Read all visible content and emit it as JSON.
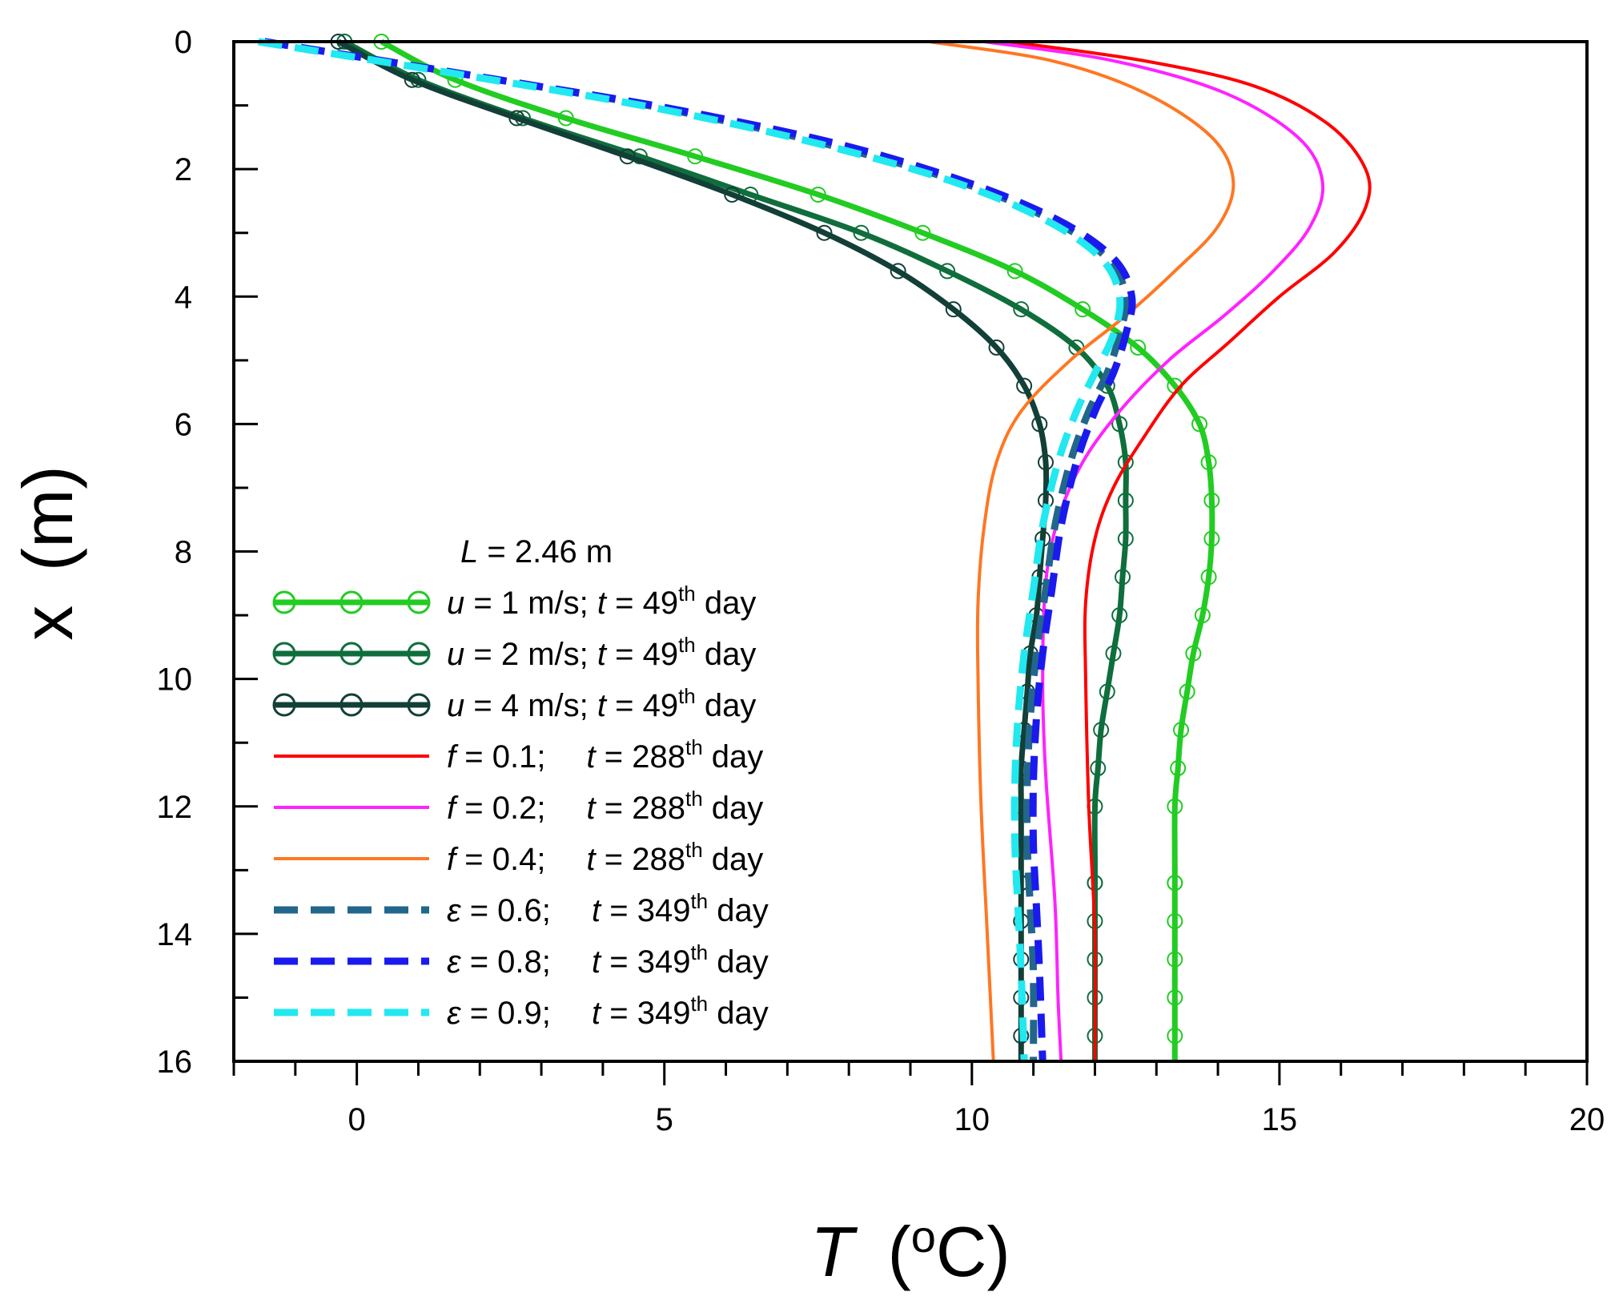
{
  "chart_data": {
    "type": "line",
    "xlabel": {
      "symbol": "T",
      "unit": "(oC)",
      "unit_sup": "o",
      "unit_rest": "C)"
    },
    "ylabel": {
      "symbol": "x",
      "unit": "(m)"
    },
    "xlim": [
      -2,
      20
    ],
    "ylim": [
      0,
      16
    ],
    "y_inverted": true,
    "x_major_ticks": [
      0,
      5,
      10,
      15,
      20
    ],
    "x_minor_step": 1,
    "y_major_ticks": [
      0,
      2,
      4,
      6,
      8,
      10,
      12,
      14,
      16
    ],
    "y_minor_step": 1,
    "grid": false,
    "legend": {
      "position": "lower-left",
      "title": {
        "symbol": "L",
        "text": " = 2.46 m"
      }
    },
    "series": [
      {
        "name": "u = 1 m/s; t = 49th day",
        "label": {
          "sym1": "u",
          "txt1": " = 1 m/s; ",
          "sym2": "t",
          "txt2": " = 49",
          "sup": "th",
          "txt3": " day"
        },
        "color": "#22cc22",
        "dash": "solid",
        "marker": "circle",
        "width": 7,
        "points": [
          [
            0.4,
            0
          ],
          [
            1.6,
            0.6
          ],
          [
            3.4,
            1.2
          ],
          [
            5.5,
            1.8
          ],
          [
            7.5,
            2.4
          ],
          [
            9.2,
            3.0
          ],
          [
            10.7,
            3.6
          ],
          [
            11.8,
            4.2
          ],
          [
            12.7,
            4.8
          ],
          [
            13.3,
            5.4
          ],
          [
            13.7,
            6.0
          ],
          [
            13.85,
            6.6
          ],
          [
            13.9,
            7.2
          ],
          [
            13.9,
            7.8
          ],
          [
            13.85,
            8.4
          ],
          [
            13.75,
            9.0
          ],
          [
            13.6,
            9.6
          ],
          [
            13.5,
            10.2
          ],
          [
            13.4,
            10.8
          ],
          [
            13.35,
            11.4
          ],
          [
            13.3,
            12.0
          ],
          [
            13.3,
            13.2
          ],
          [
            13.3,
            16.0
          ]
        ]
      },
      {
        "name": "u = 2 m/s; t = 49th day",
        "label": {
          "sym1": "u",
          "txt1": " = 2 m/s; ",
          "sym2": "t",
          "txt2": " = 49",
          "sup": "th",
          "txt3": " day"
        },
        "color": "#0f6e3c",
        "dash": "solid",
        "marker": "circle",
        "width": 7,
        "points": [
          [
            -0.2,
            0
          ],
          [
            1.0,
            0.6
          ],
          [
            2.7,
            1.2
          ],
          [
            4.6,
            1.8
          ],
          [
            6.4,
            2.4
          ],
          [
            8.2,
            3.0
          ],
          [
            9.6,
            3.6
          ],
          [
            10.8,
            4.2
          ],
          [
            11.7,
            4.8
          ],
          [
            12.2,
            5.4
          ],
          [
            12.4,
            6.0
          ],
          [
            12.5,
            6.6
          ],
          [
            12.5,
            7.2
          ],
          [
            12.5,
            7.8
          ],
          [
            12.45,
            8.4
          ],
          [
            12.4,
            9.0
          ],
          [
            12.3,
            9.6
          ],
          [
            12.2,
            10.2
          ],
          [
            12.1,
            10.8
          ],
          [
            12.05,
            11.4
          ],
          [
            12.0,
            12.0
          ],
          [
            12.0,
            13.2
          ],
          [
            12.0,
            16.0
          ]
        ]
      },
      {
        "name": "u = 4 m/s; t = 49th day",
        "label": {
          "sym1": "u",
          "txt1": " = 4 m/s; ",
          "sym2": "t",
          "txt2": " = 49",
          "sup": "th",
          "txt3": " day"
        },
        "color": "#123f37",
        "dash": "solid",
        "marker": "circle",
        "width": 7,
        "points": [
          [
            -0.3,
            0
          ],
          [
            0.9,
            0.6
          ],
          [
            2.6,
            1.2
          ],
          [
            4.4,
            1.8
          ],
          [
            6.1,
            2.4
          ],
          [
            7.6,
            3.0
          ],
          [
            8.8,
            3.6
          ],
          [
            9.7,
            4.2
          ],
          [
            10.4,
            4.8
          ],
          [
            10.85,
            5.4
          ],
          [
            11.1,
            6.0
          ],
          [
            11.2,
            6.6
          ],
          [
            11.2,
            7.2
          ],
          [
            11.15,
            7.8
          ],
          [
            11.1,
            8.4
          ],
          [
            11.05,
            9.0
          ],
          [
            10.95,
            9.6
          ],
          [
            10.9,
            10.2
          ],
          [
            10.85,
            10.8
          ],
          [
            10.8,
            11.4
          ],
          [
            10.8,
            12.0
          ],
          [
            10.8,
            13.2
          ],
          [
            10.8,
            16.0
          ]
        ]
      },
      {
        "name": "f = 0.1; t = 288th day",
        "label": {
          "sym1": "f",
          "txt1": " = 0.1;  ",
          "sym2": "t",
          "txt2": " = 288",
          "sup": "th",
          "txt3": " day"
        },
        "color": "#ff0000",
        "dash": "solid",
        "marker": "none",
        "width": 4,
        "points": [
          [
            10.6,
            0
          ],
          [
            12.8,
            0.3
          ],
          [
            14.6,
            0.7
          ],
          [
            15.8,
            1.3
          ],
          [
            16.4,
            2.0
          ],
          [
            16.4,
            2.6
          ],
          [
            15.9,
            3.3
          ],
          [
            15.0,
            4.0
          ],
          [
            14.2,
            4.7
          ],
          [
            13.4,
            5.4
          ],
          [
            12.8,
            6.2
          ],
          [
            12.3,
            7.0
          ],
          [
            12.0,
            7.8
          ],
          [
            11.85,
            8.8
          ],
          [
            11.85,
            10.0
          ],
          [
            11.9,
            12.0
          ],
          [
            12.0,
            14.0
          ],
          [
            12.0,
            16.0
          ]
        ]
      },
      {
        "name": "f = 0.2; t = 288th day",
        "label": {
          "sym1": "f",
          "txt1": " = 0.2;  ",
          "sym2": "t",
          "txt2": " = 288",
          "sup": "th",
          "txt3": " day"
        },
        "color": "#ff22ff",
        "dash": "solid",
        "marker": "none",
        "width": 4,
        "points": [
          [
            10.2,
            0
          ],
          [
            12.3,
            0.3
          ],
          [
            14.1,
            0.8
          ],
          [
            15.3,
            1.5
          ],
          [
            15.7,
            2.2
          ],
          [
            15.5,
            2.9
          ],
          [
            14.9,
            3.6
          ],
          [
            14.1,
            4.3
          ],
          [
            13.2,
            5.0
          ],
          [
            12.4,
            5.8
          ],
          [
            11.8,
            6.6
          ],
          [
            11.4,
            7.5
          ],
          [
            11.2,
            8.5
          ],
          [
            11.15,
            10.0
          ],
          [
            11.2,
            11.5
          ],
          [
            11.35,
            13.5
          ],
          [
            11.4,
            15.0
          ],
          [
            11.45,
            16.0
          ]
        ]
      },
      {
        "name": "f = 0.4; t = 288th day",
        "label": {
          "sym1": "f",
          "txt1": " = 0.4;  ",
          "sym2": "t",
          "txt2": " = 288",
          "sup": "th",
          "txt3": " day"
        },
        "color": "#ff7722",
        "dash": "solid",
        "marker": "none",
        "width": 4,
        "points": [
          [
            9.3,
            0
          ],
          [
            11.3,
            0.3
          ],
          [
            12.8,
            0.8
          ],
          [
            13.9,
            1.5
          ],
          [
            14.25,
            2.2
          ],
          [
            14.0,
            2.9
          ],
          [
            13.3,
            3.6
          ],
          [
            12.5,
            4.3
          ],
          [
            11.6,
            5.0
          ],
          [
            10.8,
            5.8
          ],
          [
            10.4,
            6.6
          ],
          [
            10.2,
            7.6
          ],
          [
            10.1,
            8.8
          ],
          [
            10.1,
            10.0
          ],
          [
            10.15,
            12.0
          ],
          [
            10.25,
            14.0
          ],
          [
            10.35,
            16.0
          ]
        ]
      },
      {
        "name": "ε = 0.6; t = 349th day",
        "label": {
          "sym1": "ε",
          "txt1": " = 0.6;  ",
          "sym2": "t",
          "txt2": " = 349",
          "sup": "th",
          "txt3": " day"
        },
        "color": "#22668c",
        "dash": "dash",
        "marker": "none",
        "width": 9,
        "points": [
          [
            -1.5,
            0
          ],
          [
            2.0,
            0.55
          ],
          [
            5.0,
            1.05
          ],
          [
            7.6,
            1.6
          ],
          [
            9.8,
            2.2
          ],
          [
            11.3,
            2.8
          ],
          [
            12.2,
            3.4
          ],
          [
            12.5,
            4.0
          ],
          [
            12.4,
            4.6
          ],
          [
            12.2,
            5.2
          ],
          [
            11.9,
            5.8
          ],
          [
            11.6,
            6.6
          ],
          [
            11.35,
            7.6
          ],
          [
            11.2,
            8.6
          ],
          [
            11.05,
            9.6
          ],
          [
            10.95,
            10.6
          ],
          [
            10.9,
            11.6
          ],
          [
            10.9,
            12.6
          ],
          [
            10.95,
            13.6
          ],
          [
            11.0,
            14.6
          ],
          [
            11.0,
            16.0
          ]
        ]
      },
      {
        "name": "ε = 0.8; t = 349th day",
        "label": {
          "sym1": "ε",
          "txt1": " = 0.8;  ",
          "sym2": "t",
          "txt2": " = 349",
          "sup": "th",
          "txt3": " day"
        },
        "color": "#1a1aee",
        "dash": "dash",
        "marker": "none",
        "width": 9,
        "points": [
          [
            -1.5,
            0
          ],
          [
            2.0,
            0.55
          ],
          [
            5.1,
            1.05
          ],
          [
            7.8,
            1.6
          ],
          [
            9.9,
            2.2
          ],
          [
            11.4,
            2.8
          ],
          [
            12.3,
            3.4
          ],
          [
            12.6,
            4.0
          ],
          [
            12.5,
            4.6
          ],
          [
            12.3,
            5.2
          ],
          [
            12.0,
            5.8
          ],
          [
            11.7,
            6.6
          ],
          [
            11.45,
            7.6
          ],
          [
            11.3,
            8.6
          ],
          [
            11.15,
            9.6
          ],
          [
            11.05,
            10.6
          ],
          [
            11.0,
            11.6
          ],
          [
            11.0,
            12.6
          ],
          [
            11.05,
            13.6
          ],
          [
            11.1,
            14.6
          ],
          [
            11.15,
            16.0
          ]
        ]
      },
      {
        "name": "ε = 0.9; t = 349th day",
        "label": {
          "sym1": "ε",
          "txt1": " = 0.9;  ",
          "sym2": "t",
          "txt2": " = 349",
          "sup": "th",
          "txt3": " day"
        },
        "color": "#22e8f0",
        "dash": "dash",
        "marker": "none",
        "width": 9,
        "points": [
          [
            -1.6,
            0
          ],
          [
            1.9,
            0.55
          ],
          [
            4.9,
            1.05
          ],
          [
            7.5,
            1.6
          ],
          [
            9.7,
            2.2
          ],
          [
            11.2,
            2.8
          ],
          [
            12.1,
            3.4
          ],
          [
            12.4,
            4.0
          ],
          [
            12.3,
            4.6
          ],
          [
            12.0,
            5.2
          ],
          [
            11.7,
            5.8
          ],
          [
            11.4,
            6.6
          ],
          [
            11.15,
            7.6
          ],
          [
            11.0,
            8.6
          ],
          [
            10.85,
            9.6
          ],
          [
            10.75,
            10.6
          ],
          [
            10.7,
            11.6
          ],
          [
            10.7,
            12.6
          ],
          [
            10.75,
            13.6
          ],
          [
            10.8,
            14.6
          ],
          [
            10.85,
            16.0
          ]
        ]
      }
    ]
  }
}
